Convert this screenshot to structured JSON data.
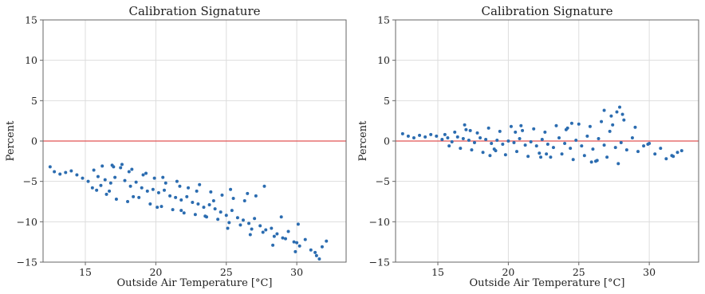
{
  "colors": {
    "points": "#2b6cb0",
    "zero_line": "#e05555",
    "grid": "#dddddd",
    "frame": "#666666"
  },
  "chart_data": [
    {
      "type": "scatter",
      "title": "Calibration Signature",
      "xlabel": "Outside Air Temperature [°C]",
      "ylabel": "Percent",
      "xlim": [
        12,
        33.5
      ],
      "ylim": [
        -15,
        15
      ],
      "xticks": [
        15,
        20,
        25,
        30
      ],
      "yticks": [
        -15,
        -10,
        -5,
        0,
        5,
        10,
        15
      ],
      "grid": true,
      "reference_line_y": 0,
      "series": [
        {
          "x": [
            12.5,
            12.8,
            13.2,
            13.6,
            14.0,
            14.4,
            14.8,
            15.2,
            15.5,
            15.8,
            16.1,
            16.4,
            16.8,
            17.1,
            17.5,
            17.8,
            18.2,
            18.6,
            19.0,
            19.4,
            19.8,
            20.2,
            20.6,
            21.0,
            21.4,
            21.8,
            22.2,
            22.6,
            23.0,
            23.4,
            23.8,
            24.2,
            24.6,
            25.0,
            25.4,
            25.8,
            26.2,
            26.6,
            27.0,
            27.4,
            27.8,
            28.2,
            28.6,
            29.0,
            29.4,
            29.8,
            30.2,
            30.6,
            31.0,
            31.4,
            31.8,
            32.1,
            15.6,
            16.2,
            16.9,
            17.6,
            18.3,
            19.1,
            19.9,
            20.7,
            21.5,
            22.3,
            23.1,
            23.9,
            24.7,
            25.5,
            26.3,
            27.1,
            16.5,
            17.2,
            18.0,
            18.8,
            19.6,
            20.4,
            21.2,
            22.0,
            22.8,
            23.6,
            24.4,
            25.2,
            26.0,
            26.8,
            27.6,
            28.4,
            29.2,
            30.0,
            15.9,
            17.0,
            18.1,
            19.3,
            20.5,
            21.7,
            22.9,
            24.1,
            25.3,
            26.5,
            27.7,
            28.9,
            30.1,
            31.3,
            16.7,
            18.4,
            20.1,
            21.8,
            23.5,
            25.1,
            26.7,
            28.3,
            29.9,
            31.6
          ],
          "y": [
            -3.2,
            -3.8,
            -4.1,
            -3.9,
            -3.7,
            -4.2,
            -4.6,
            -5.0,
            -5.8,
            -6.1,
            -5.5,
            -4.8,
            -5.2,
            -4.5,
            -3.3,
            -4.9,
            -5.6,
            -5.1,
            -5.8,
            -6.2,
            -6.0,
            -6.4,
            -6.1,
            -6.8,
            -7.0,
            -7.3,
            -6.9,
            -7.6,
            -7.8,
            -8.2,
            -7.9,
            -8.4,
            -8.8,
            -9.2,
            -8.6,
            -9.5,
            -9.8,
            -10.2,
            -9.6,
            -10.5,
            -11.0,
            -10.8,
            -11.5,
            -12.0,
            -11.2,
            -12.5,
            -13.0,
            -12.2,
            -13.5,
            -14.2,
            -13.1,
            -12.4,
            -3.6,
            -3.1,
            -3.0,
            -2.9,
            -3.5,
            -4.2,
            -4.6,
            -5.2,
            -5.0,
            -5.8,
            -5.4,
            -6.3,
            -6.7,
            -7.1,
            -7.4,
            -6.8,
            -6.6,
            -7.2,
            -7.5,
            -7.0,
            -7.8,
            -8.1,
            -8.5,
            -8.9,
            -9.1,
            -9.4,
            -9.7,
            -10.1,
            -10.4,
            -10.9,
            -11.3,
            -11.8,
            -12.1,
            -12.6,
            -4.4,
            -3.2,
            -3.8,
            -4.0,
            -4.5,
            -5.6,
            -6.2,
            -7.4,
            -6.0,
            -6.5,
            -5.6,
            -9.4,
            -10.3,
            -13.8,
            -6.2,
            -6.9,
            -8.2,
            -8.6,
            -9.3,
            -10.8,
            -11.6,
            -12.9,
            -13.7,
            -14.6
          ]
        }
      ]
    },
    {
      "type": "scatter",
      "title": "Calibration Signature",
      "xlabel": "Outside Air Temperature [°C]",
      "ylabel": "Percent",
      "xlim": [
        12,
        33.5
      ],
      "ylim": [
        -15,
        15
      ],
      "xticks": [
        15,
        20,
        25,
        30
      ],
      "yticks": [
        -15,
        -10,
        -5,
        0,
        5,
        10,
        15
      ],
      "grid": true,
      "reference_line_y": 0,
      "series": [
        {
          "x": [
            12.5,
            12.9,
            13.3,
            13.7,
            14.1,
            14.5,
            14.9,
            15.3,
            15.7,
            16.0,
            16.4,
            16.8,
            17.2,
            17.6,
            18.0,
            18.4,
            18.8,
            19.2,
            19.6,
            20.0,
            20.4,
            20.8,
            21.2,
            21.6,
            22.0,
            22.4,
            22.8,
            23.2,
            23.6,
            24.0,
            24.4,
            24.8,
            25.2,
            25.6,
            26.0,
            26.4,
            26.8,
            27.2,
            27.6,
            28.0,
            28.4,
            28.8,
            29.2,
            29.6,
            30.0,
            30.4,
            30.8,
            31.2,
            31.6,
            32.0,
            32.3,
            15.8,
            16.6,
            17.4,
            18.2,
            19.0,
            19.8,
            20.6,
            21.4,
            22.2,
            23.0,
            23.8,
            24.6,
            25.4,
            26.2,
            27.0,
            27.8,
            16.2,
            17.0,
            17.8,
            18.6,
            19.4,
            20.2,
            21.0,
            21.8,
            22.6,
            23.4,
            24.2,
            25.0,
            25.8,
            26.6,
            27.4,
            28.2,
            29.0,
            15.5,
            17.3,
            19.1,
            20.9,
            22.7,
            24.5,
            26.3,
            28.1,
            29.9,
            31.7,
            16.9,
            18.7,
            20.5,
            22.3,
            24.1,
            25.9,
            27.7,
            26.8,
            27.3,
            27.9
          ],
          "y": [
            0.9,
            0.6,
            0.4,
            0.7,
            0.5,
            0.8,
            0.6,
            0.2,
            0.4,
            -0.1,
            0.5,
            0.3,
            0.1,
            -0.2,
            0.4,
            0.2,
            -0.3,
            0.1,
            -0.4,
            0.0,
            -0.2,
            0.3,
            -0.5,
            -0.1,
            -0.6,
            0.2,
            -0.4,
            -0.8,
            0.4,
            -0.3,
            -0.9,
            0.1,
            -0.6,
            0.6,
            -1.0,
            0.3,
            -0.5,
            1.2,
            -0.8,
            -0.2,
            -1.1,
            0.4,
            -1.3,
            -0.6,
            -0.3,
            -1.6,
            -0.9,
            -2.2,
            -1.8,
            -1.4,
            -1.2,
            -0.6,
            -0.9,
            -1.1,
            -1.4,
            -1.0,
            -1.7,
            -1.3,
            -1.9,
            -1.5,
            -2.0,
            -1.6,
            -2.3,
            -1.8,
            -2.5,
            -2.0,
            -2.8,
            1.1,
            1.4,
            1.0,
            1.6,
            1.2,
            1.8,
            1.3,
            1.5,
            1.1,
            1.9,
            1.6,
            2.1,
            1.8,
            2.4,
            2.0,
            2.6,
            1.7,
            0.8,
            1.3,
            -1.2,
            1.9,
            -1.6,
            2.2,
            -2.4,
            3.3,
            -0.4,
            -1.9,
            2.0,
            -1.8,
            1.1,
            -2.0,
            1.4,
            -2.6,
            3.6,
            3.8,
            3.1,
            4.2
          ]
        }
      ]
    }
  ]
}
